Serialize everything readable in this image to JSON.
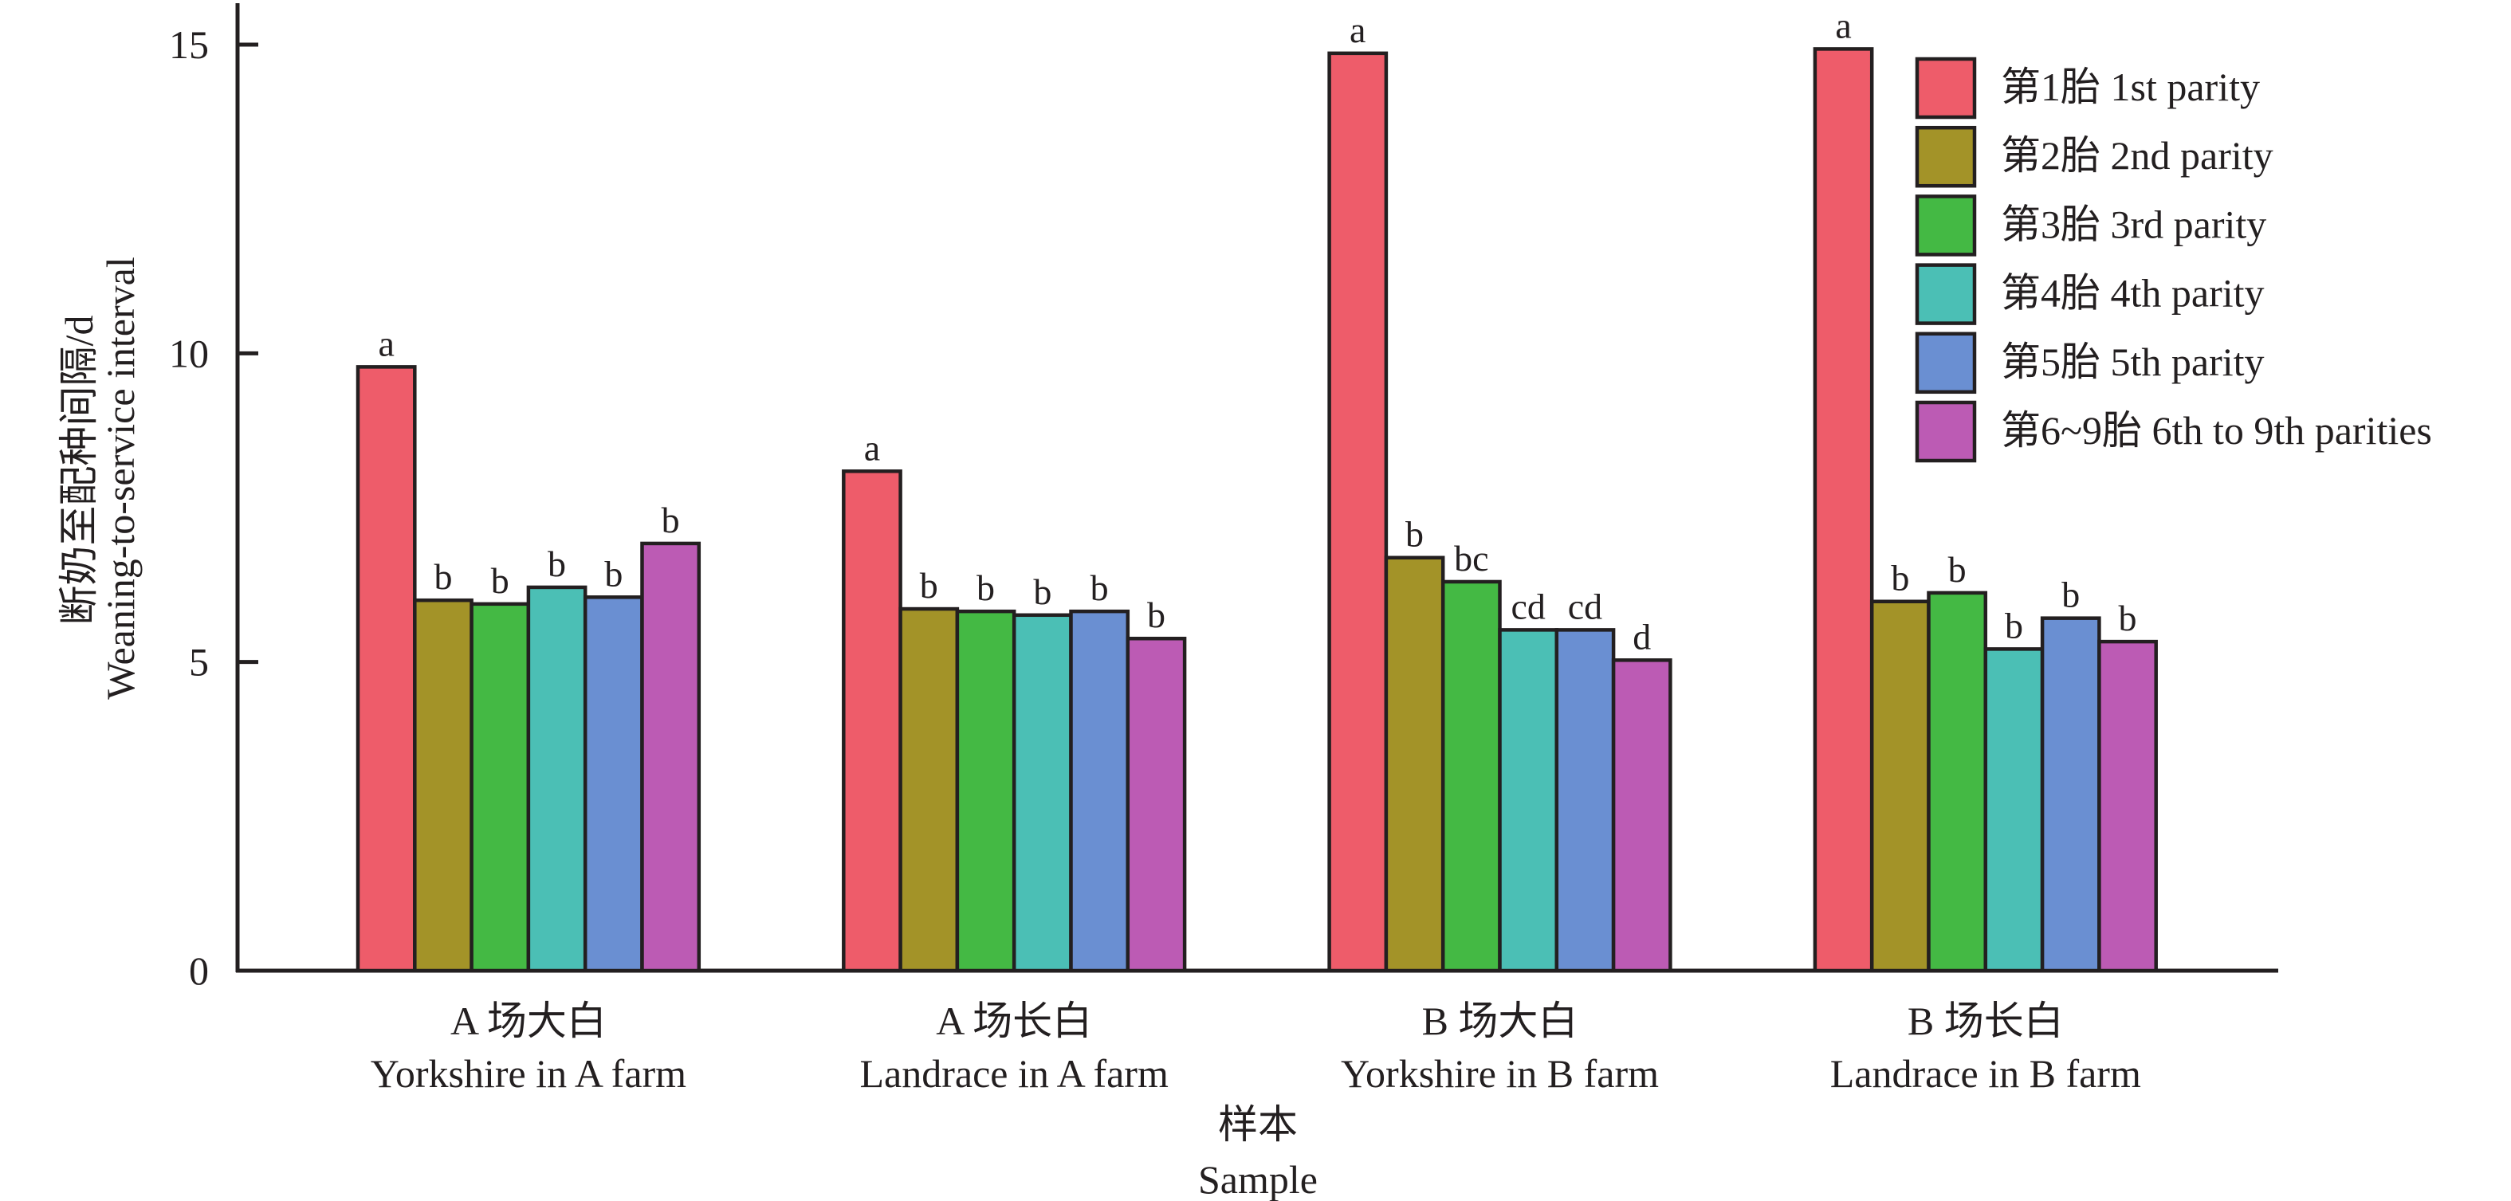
{
  "chart_data": {
    "type": "bar",
    "title": "",
    "ylabel_cn": "断奶至配种间隔/d",
    "ylabel_en": "Weaning-to-service interval",
    "xlabel_cn": "样本",
    "xlabel_en": "Sample",
    "ylim": [
      0,
      15
    ],
    "yticks": [
      0,
      5,
      10,
      15
    ],
    "ytick_labels": [
      "0",
      "5",
      "10",
      "15"
    ],
    "grid": false,
    "legend_position": "top-right",
    "categories": [
      {
        "cn": "A 场大白",
        "en": "Yorkshire in A farm"
      },
      {
        "cn": "A 场长白",
        "en": "Landrace in A farm"
      },
      {
        "cn": "B 场大白",
        "en": "Yorkshire in B farm"
      },
      {
        "cn": "B 场长白",
        "en": "Landrace in B farm"
      }
    ],
    "series": [
      {
        "name": "第1胎 1st parity",
        "color": "#EE5C6A",
        "values": [
          9.78,
          8.09,
          14.86,
          14.93
        ],
        "labels": [
          "a",
          "a",
          "a",
          "a"
        ]
      },
      {
        "name": "第2胎 2nd parity",
        "color": "#A39328",
        "values": [
          6.0,
          5.86,
          6.69,
          5.98
        ],
        "labels": [
          "b",
          "b",
          "b",
          "b"
        ]
      },
      {
        "name": "第3胎 3rd parity",
        "color": "#44B944",
        "values": [
          5.94,
          5.82,
          6.3,
          6.12
        ],
        "labels": [
          "b",
          "b",
          "bc",
          "b"
        ]
      },
      {
        "name": "第4胎 4th parity",
        "color": "#4BBFB5",
        "values": [
          6.21,
          5.76,
          5.52,
          5.21
        ],
        "labels": [
          "b",
          "b",
          "cd",
          "b"
        ]
      },
      {
        "name": "第5胎 5th parity",
        "color": "#6A8FD2",
        "values": [
          6.05,
          5.82,
          5.52,
          5.71
        ],
        "labels": [
          "b",
          "b",
          "cd",
          "b"
        ]
      },
      {
        "name": "第6~9胎 6th to 9th parities",
        "color": "#BC5BB4",
        "values": [
          6.92,
          5.38,
          5.03,
          5.33
        ],
        "labels": [
          "b",
          "b",
          "d",
          "b"
        ]
      }
    ]
  }
}
